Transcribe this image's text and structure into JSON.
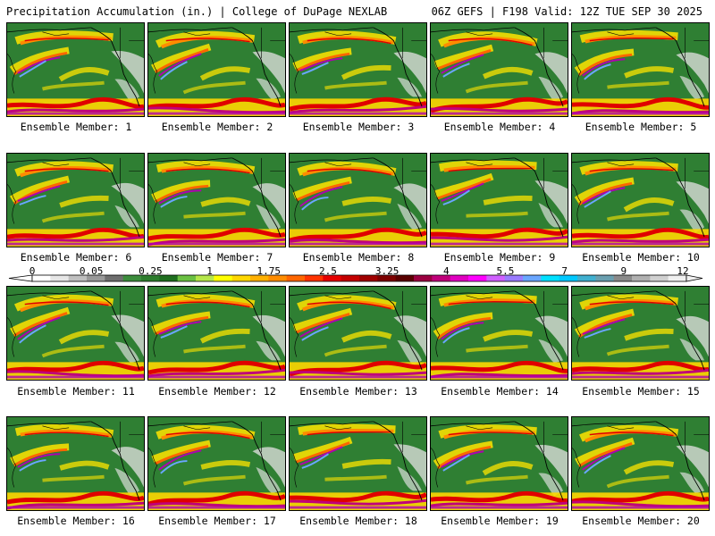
{
  "header": {
    "left": "Precipitation Accumulation (in.) | College of DuPage NEXLAB",
    "right": "06Z GEFS | F198 Valid: 12Z TUE SEP 30 2025"
  },
  "panel_label_prefix": "Ensemble Member:",
  "members": [
    1,
    2,
    3,
    4,
    5,
    6,
    7,
    8,
    9,
    10,
    11,
    12,
    13,
    14,
    15,
    16,
    17,
    18,
    19,
    20
  ],
  "colorbar": {
    "ticks": [
      "0",
      "0.05",
      "0.25",
      "1",
      "1.75",
      "2.5",
      "3.25",
      "4",
      "5.5",
      "7",
      "9",
      "12"
    ],
    "colors": [
      "#ffffff",
      "#e6e6e6",
      "#bfbfbf",
      "#999999",
      "#6e6e6e",
      "#3c8c3c",
      "#2d7d2d",
      "#1e6e1e",
      "#6ac042",
      "#b5e64a",
      "#ffff00",
      "#ffd700",
      "#ffb000",
      "#ff8c00",
      "#ff6600",
      "#ff3300",
      "#e60000",
      "#c40000",
      "#a00000",
      "#7d0000",
      "#5a0000",
      "#9b0040",
      "#c0007a",
      "#e000c0",
      "#ff00ff",
      "#d060ff",
      "#9a7bff",
      "#6aa6ff",
      "#00e0ff",
      "#00c8ff",
      "#40b0d0",
      "#6a9fb0",
      "#8a8a8a",
      "#b0b0b0",
      "#d0d0d0",
      "#f0f0f0"
    ]
  }
}
